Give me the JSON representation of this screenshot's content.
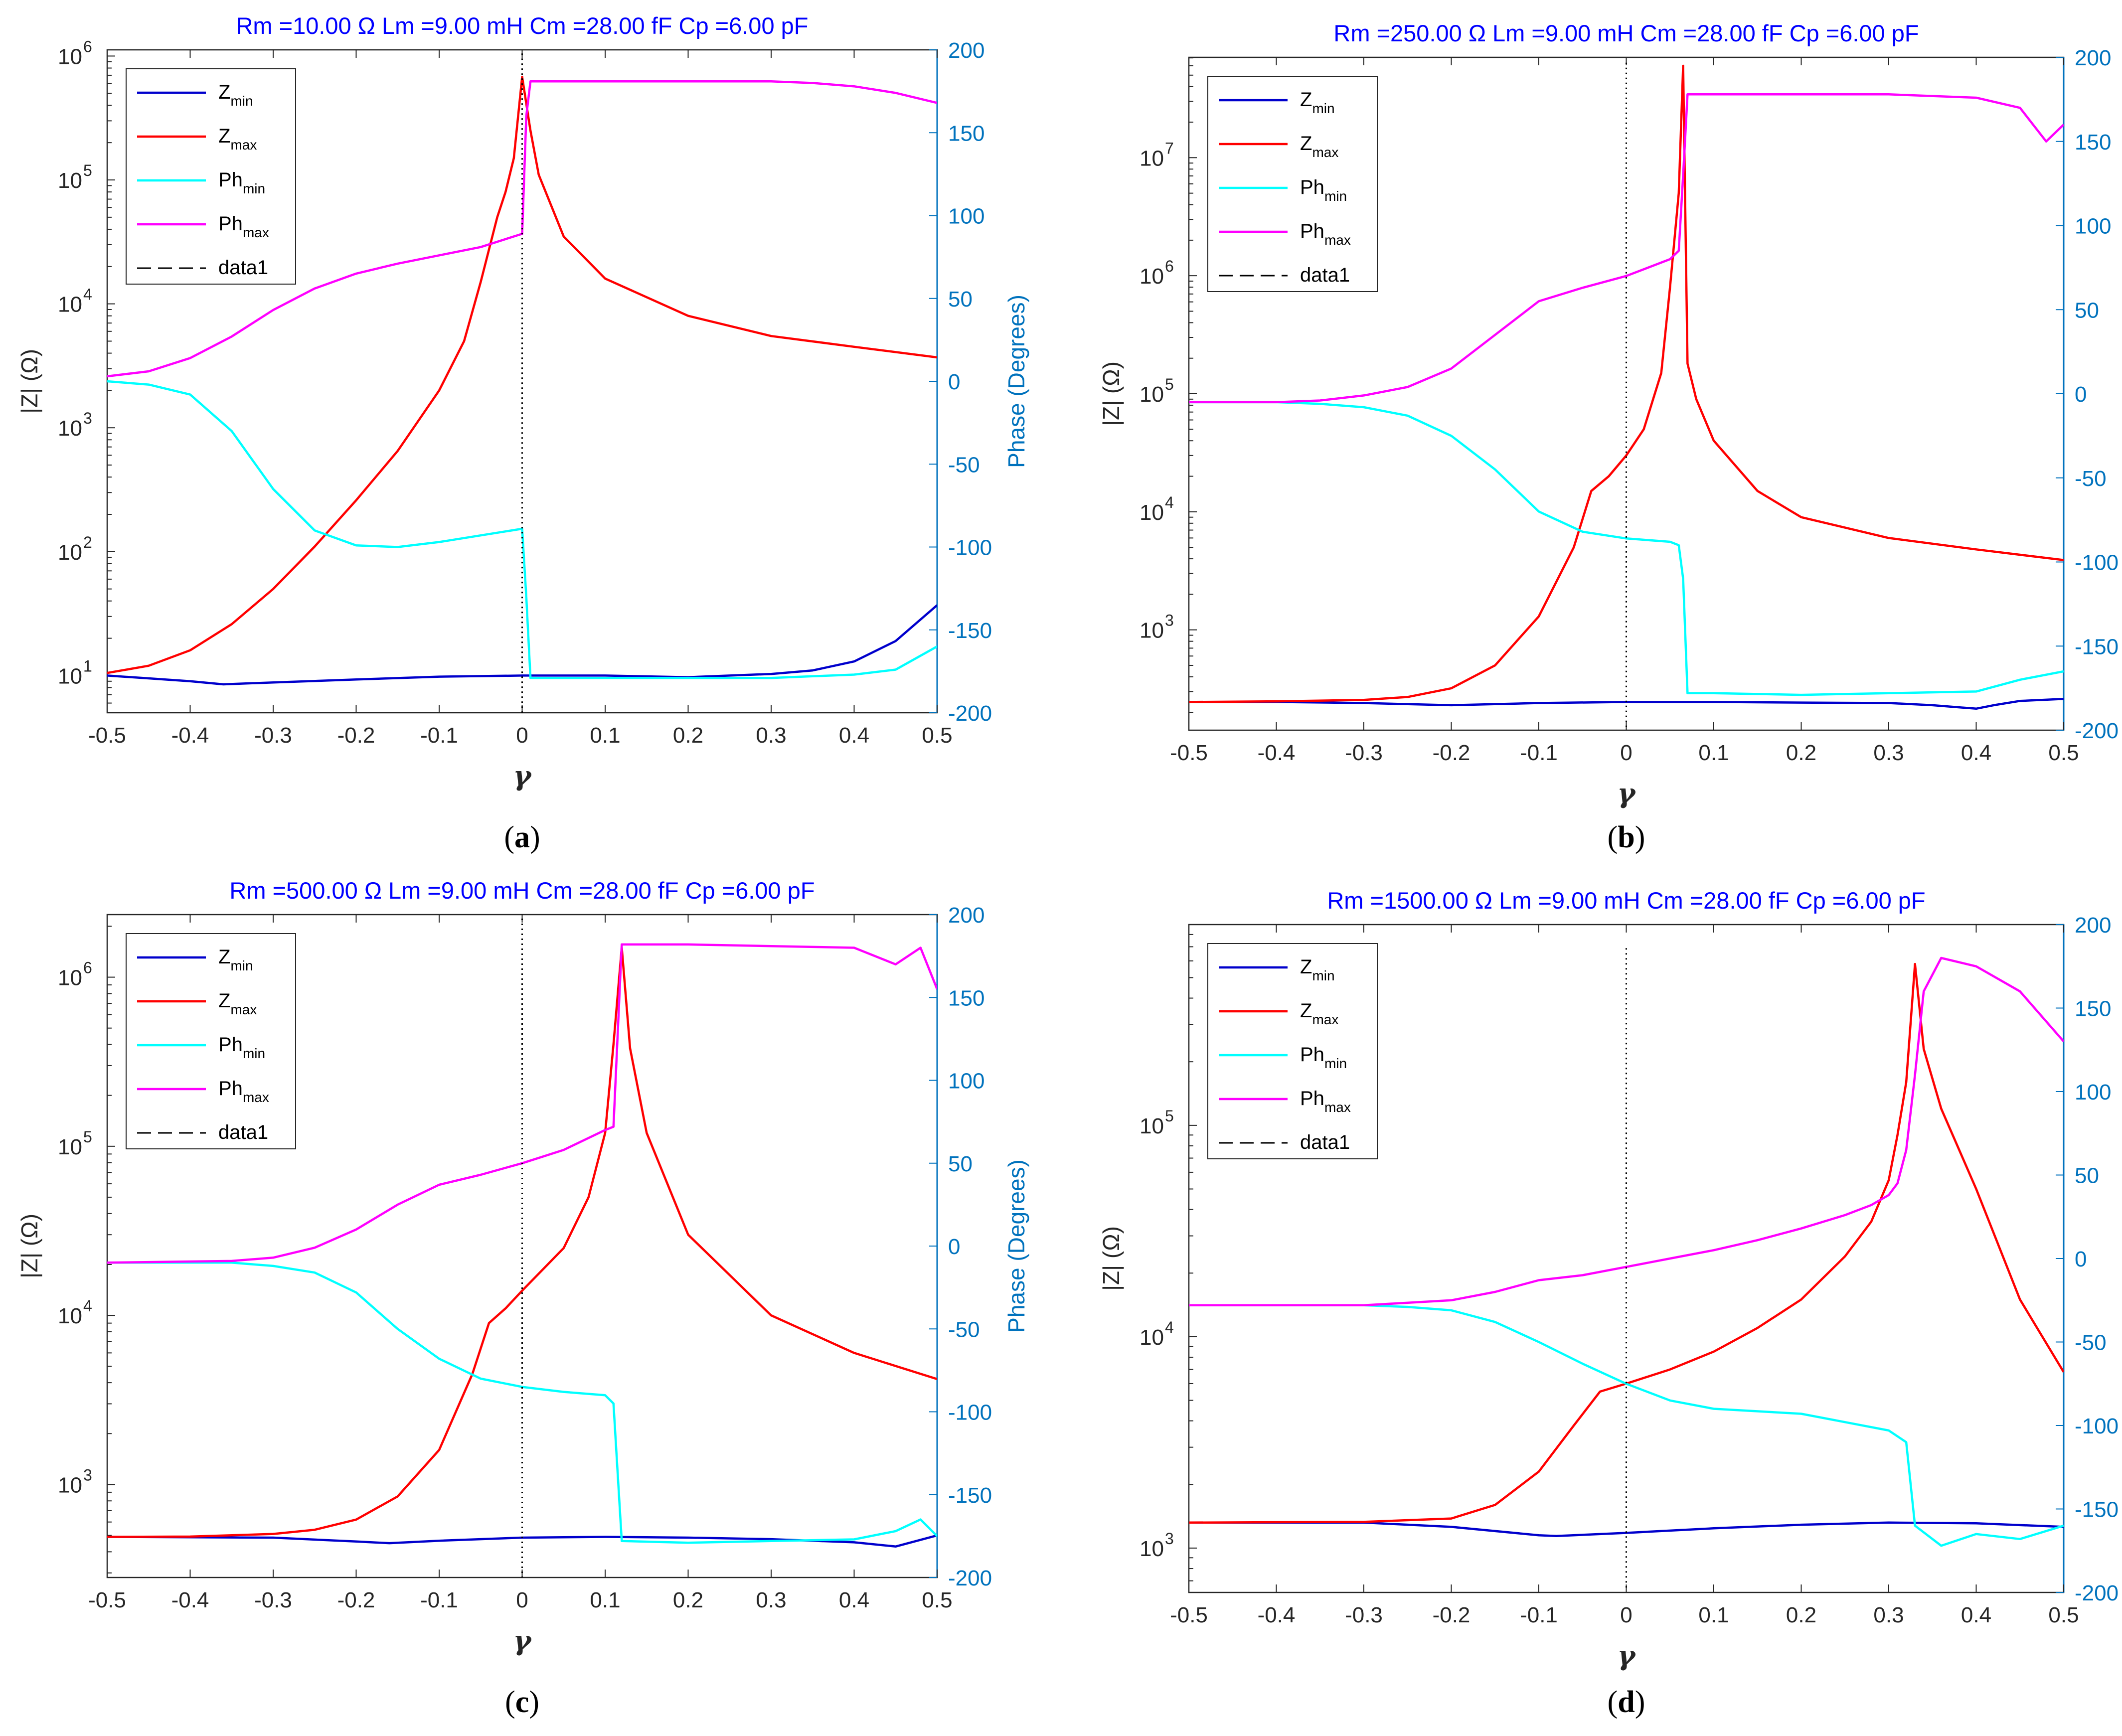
{
  "legend": {
    "z_min": {
      "base": "Z",
      "sub": "min"
    },
    "z_max": {
      "base": "Z",
      "sub": "max"
    },
    "ph_min": {
      "base": "Ph",
      "sub": "min"
    },
    "ph_max": {
      "base": "Ph",
      "sub": "max"
    },
    "data1": "data1"
  },
  "colors": {
    "z_min": "#0000cc",
    "z_max": "#ff0000",
    "ph_min": "#00ffff",
    "ph_max": "#ff00ff",
    "data1": "#000000",
    "title": "#0000ff",
    "right_axis": "#0072bd"
  },
  "axis_labels": {
    "left": "|Z| (Ω)",
    "right": "Phase (Degrees)",
    "x": "γ"
  },
  "chart_data": [
    {
      "type": "line",
      "panel": "a",
      "caption": "a",
      "title": "Rm =10.00 Ω    Lm =9.00 mH    Cm =28.00 fF    Cp =6.00 pF",
      "xlabel": "γ",
      "ylabel": "|Z| (Ω)",
      "y2label": "Phase (Degrees)",
      "xlim": [
        -0.5,
        0.5
      ],
      "ylim_log10": [
        0.7,
        6.05
      ],
      "y_scale": "log",
      "y_ticks": [
        {
          "exp": 1,
          "label": "10",
          "sup": "1"
        },
        {
          "exp": 2,
          "label": "10",
          "sup": "2"
        },
        {
          "exp": 3,
          "label": "10",
          "sup": "3"
        },
        {
          "exp": 4,
          "label": "10",
          "sup": "4"
        },
        {
          "exp": 5,
          "label": "10",
          "sup": "5"
        },
        {
          "exp": 6,
          "label": "10",
          "sup": "6"
        }
      ],
      "y2lim": [
        -200,
        200
      ],
      "y2_ticks": [
        -200,
        -150,
        -100,
        -50,
        0,
        50,
        100,
        150,
        200
      ],
      "x_ticks": [
        -0.5,
        -0.4,
        -0.3,
        -0.2,
        -0.1,
        0,
        0.1,
        0.2,
        0.3,
        0.4,
        0.5
      ],
      "legend_position": "top-left",
      "series": [
        {
          "name": "Z_min",
          "axis": "left",
          "x": [
            -0.5,
            -0.45,
            -0.4,
            -0.36,
            -0.3,
            -0.2,
            -0.1,
            0,
            0.1,
            0.2,
            0.25,
            0.3,
            0.35,
            0.4,
            0.45,
            0.5
          ],
          "values": [
            10,
            9.5,
            9,
            8.5,
            8.8,
            9.3,
            9.8,
            10,
            10,
            9.7,
            10,
            10.3,
            11,
            13,
            19,
            37
          ]
        },
        {
          "name": "Z_max",
          "axis": "left",
          "x": [
            -0.5,
            -0.45,
            -0.4,
            -0.35,
            -0.3,
            -0.25,
            -0.2,
            -0.15,
            -0.1,
            -0.07,
            -0.05,
            -0.03,
            -0.02,
            -0.01,
            0,
            0.01,
            0.02,
            0.05,
            0.1,
            0.2,
            0.3,
            0.4,
            0.5
          ],
          "values": [
            10.5,
            12,
            16,
            26,
            50,
            110,
            260,
            650,
            2000,
            5000,
            15000,
            50000,
            80000,
            150000,
            680000,
            250000,
            110000,
            35000,
            16000,
            8000,
            5500,
            4500,
            3700
          ]
        },
        {
          "name": "Ph_min",
          "axis": "right",
          "x": [
            -0.5,
            -0.45,
            -0.4,
            -0.35,
            -0.3,
            -0.25,
            -0.2,
            -0.15,
            -0.1,
            -0.05,
            0,
            0.005,
            0.01,
            0.1,
            0.2,
            0.3,
            0.35,
            0.4,
            0.45,
            0.5
          ],
          "values": [
            0,
            -2,
            -8,
            -30,
            -65,
            -90,
            -99,
            -100,
            -97,
            -93,
            -89,
            -130,
            -179,
            -179,
            -179,
            -179,
            -178,
            -177,
            -174,
            -160
          ]
        },
        {
          "name": "Ph_max",
          "axis": "right",
          "x": [
            -0.5,
            -0.45,
            -0.4,
            -0.35,
            -0.3,
            -0.25,
            -0.2,
            -0.15,
            -0.1,
            -0.05,
            0,
            0.005,
            0.01,
            0.1,
            0.2,
            0.3,
            0.35,
            0.4,
            0.45,
            0.5
          ],
          "values": [
            3,
            6,
            14,
            27,
            43,
            56,
            65,
            71,
            76,
            81,
            89,
            160,
            181,
            181,
            181,
            181,
            180,
            178,
            174,
            168
          ]
        },
        {
          "name": "data1",
          "axis": "left",
          "x": [
            0,
            0
          ],
          "values": [
            5,
            1120000
          ]
        }
      ]
    },
    {
      "type": "line",
      "panel": "b",
      "caption": "b",
      "title": "Rm =250.00 Ω    Lm =9.00 mH    Cm =28.00 fF    Cp =6.00 pF",
      "xlabel": "γ",
      "ylabel": "|Z| (Ω)",
      "y2label": "Phase (Degrees)",
      "xlim": [
        -0.5,
        0.5
      ],
      "ylim_log10": [
        2.15,
        7.85
      ],
      "y_scale": "log",
      "y_ticks": [
        {
          "exp": 3,
          "label": "10",
          "sup": "3"
        },
        {
          "exp": 4,
          "label": "10",
          "sup": "4"
        },
        {
          "exp": 5,
          "label": "10",
          "sup": "5"
        },
        {
          "exp": 6,
          "label": "10",
          "sup": "6"
        },
        {
          "exp": 7,
          "label": "10",
          "sup": "7"
        }
      ],
      "y2lim": [
        -200,
        200
      ],
      "y2_ticks": [
        -200,
        -150,
        -100,
        -50,
        0,
        50,
        100,
        150,
        200
      ],
      "x_ticks": [
        -0.5,
        -0.4,
        -0.3,
        -0.2,
        -0.1,
        0,
        0.1,
        0.2,
        0.3,
        0.4,
        0.5
      ],
      "legend_position": "top-left",
      "series": [
        {
          "name": "Z_min",
          "axis": "left",
          "x": [
            -0.5,
            -0.4,
            -0.3,
            -0.2,
            -0.1,
            0,
            0.1,
            0.2,
            0.3,
            0.35,
            0.4,
            0.42,
            0.45,
            0.5
          ],
          "values": [
            245,
            245,
            240,
            230,
            240,
            245,
            245,
            242,
            240,
            230,
            215,
            230,
            250,
            260
          ]
        },
        {
          "name": "Z_max",
          "axis": "left",
          "x": [
            -0.5,
            -0.4,
            -0.3,
            -0.25,
            -0.2,
            -0.15,
            -0.1,
            -0.06,
            -0.04,
            -0.02,
            0,
            0.02,
            0.04,
            0.05,
            0.06,
            0.065,
            0.07,
            0.08,
            0.1,
            0.15,
            0.2,
            0.3,
            0.4,
            0.5
          ],
          "values": [
            245,
            248,
            255,
            270,
            320,
            500,
            1300,
            5000,
            15000,
            20000,
            30000,
            50000,
            150000,
            800000,
            5000000,
            60000000,
            180000,
            90000,
            40000,
            15000,
            9000,
            6000,
            4800,
            3900
          ]
        },
        {
          "name": "Ph_min",
          "axis": "right",
          "x": [
            -0.5,
            -0.4,
            -0.35,
            -0.3,
            -0.25,
            -0.2,
            -0.15,
            -0.1,
            -0.05,
            0,
            0.05,
            0.06,
            0.065,
            0.07,
            0.1,
            0.2,
            0.3,
            0.4,
            0.45,
            0.5
          ],
          "values": [
            -5,
            -5,
            -6,
            -8,
            -13,
            -25,
            -45,
            -70,
            -82,
            -86,
            -88,
            -90,
            -110,
            -178,
            -178,
            -179,
            -178,
            -177,
            -170,
            -165
          ]
        },
        {
          "name": "Ph_max",
          "axis": "right",
          "x": [
            -0.5,
            -0.4,
            -0.35,
            -0.3,
            -0.25,
            -0.2,
            -0.15,
            -0.1,
            -0.05,
            0,
            0.05,
            0.06,
            0.065,
            0.07,
            0.1,
            0.2,
            0.3,
            0.4,
            0.45,
            0.48,
            0.5
          ],
          "values": [
            -5,
            -5,
            -4,
            -1,
            4,
            15,
            35,
            55,
            63,
            70,
            80,
            85,
            130,
            178,
            178,
            178,
            178,
            176,
            170,
            150,
            160
          ]
        },
        {
          "name": "data1",
          "axis": "left",
          "x": [
            0,
            0
          ],
          "values": [
            150,
            66000000
          ]
        }
      ]
    },
    {
      "type": "line",
      "panel": "c",
      "caption": "c",
      "title": "Rm =500.00 Ω    Lm =9.00 mH    Cm =28.00 fF    Cp =6.00 pF",
      "xlabel": "γ",
      "ylabel": "|Z| (Ω)",
      "y2label": "Phase (Degrees)",
      "xlim": [
        -0.5,
        0.5
      ],
      "ylim_log10": [
        2.45,
        6.37
      ],
      "y_scale": "log",
      "y_ticks": [
        {
          "exp": 3,
          "label": "10",
          "sup": "3"
        },
        {
          "exp": 4,
          "label": "10",
          "sup": "4"
        },
        {
          "exp": 5,
          "label": "10",
          "sup": "5"
        },
        {
          "exp": 6,
          "label": "10",
          "sup": "6"
        }
      ],
      "y2lim": [
        -200,
        200
      ],
      "y2_ticks": [
        -200,
        -150,
        -100,
        -50,
        0,
        50,
        100,
        150,
        200
      ],
      "x_ticks": [
        -0.5,
        -0.4,
        -0.3,
        -0.2,
        -0.1,
        0,
        0.1,
        0.2,
        0.3,
        0.4,
        0.5
      ],
      "legend_position": "top-left",
      "series": [
        {
          "name": "Z_min",
          "axis": "left",
          "x": [
            -0.5,
            -0.3,
            -0.2,
            -0.16,
            -0.1,
            0,
            0.1,
            0.2,
            0.3,
            0.4,
            0.45,
            0.5
          ],
          "values": [
            490,
            485,
            460,
            450,
            465,
            485,
            490,
            485,
            475,
            455,
            430,
            500
          ]
        },
        {
          "name": "Z_max",
          "axis": "left",
          "x": [
            -0.5,
            -0.4,
            -0.3,
            -0.25,
            -0.2,
            -0.15,
            -0.1,
            -0.06,
            -0.04,
            -0.02,
            0,
            0.05,
            0.08,
            0.1,
            0.11,
            0.12,
            0.13,
            0.15,
            0.2,
            0.3,
            0.4,
            0.5
          ],
          "values": [
            490,
            492,
            510,
            540,
            620,
            850,
            1600,
            4500,
            9000,
            11000,
            14000,
            25000,
            50000,
            120000,
            400000,
            1500000,
            380000,
            120000,
            30000,
            10000,
            6000,
            4200
          ]
        },
        {
          "name": "Ph_min",
          "axis": "right",
          "x": [
            -0.5,
            -0.35,
            -0.3,
            -0.25,
            -0.2,
            -0.15,
            -0.1,
            -0.05,
            0,
            0.05,
            0.1,
            0.11,
            0.12,
            0.2,
            0.3,
            0.4,
            0.45,
            0.48,
            0.5
          ],
          "values": [
            -10,
            -10,
            -12,
            -16,
            -28,
            -50,
            -68,
            -80,
            -85,
            -88,
            -90,
            -95,
            -178,
            -179,
            -178,
            -177,
            -172,
            -165,
            -175
          ]
        },
        {
          "name": "Ph_max",
          "axis": "right",
          "x": [
            -0.5,
            -0.35,
            -0.3,
            -0.25,
            -0.2,
            -0.15,
            -0.1,
            -0.05,
            0,
            0.05,
            0.1,
            0.11,
            0.12,
            0.2,
            0.3,
            0.4,
            0.45,
            0.48,
            0.5
          ],
          "values": [
            -10,
            -9,
            -7,
            -1,
            10,
            25,
            37,
            43,
            50,
            58,
            70,
            72,
            182,
            182,
            181,
            180,
            170,
            180,
            155
          ]
        },
        {
          "name": "data1",
          "axis": "left",
          "x": [
            0,
            0
          ],
          "values": [
            280,
            2350000
          ]
        }
      ]
    },
    {
      "type": "line",
      "panel": "d",
      "caption": "d",
      "title": "Rm =1500.00 Ω    Lm =9.00 mH    Cm =28.00 fF    Cp =6.00 pF",
      "xlabel": "γ",
      "ylabel": "|Z| (Ω)",
      "y2label": "Phase (Degrees)",
      "xlim": [
        -0.5,
        0.5
      ],
      "ylim_log10": [
        2.79,
        5.95
      ],
      "y_scale": "log",
      "y_ticks": [
        {
          "exp": 3,
          "label": "10",
          "sup": "3"
        },
        {
          "exp": 4,
          "label": "10",
          "sup": "4"
        },
        {
          "exp": 5,
          "label": "10",
          "sup": "5"
        }
      ],
      "y2lim": [
        -200,
        200
      ],
      "y2_ticks": [
        -200,
        -150,
        -100,
        -50,
        0,
        50,
        100,
        150,
        200
      ],
      "x_ticks": [
        -0.5,
        -0.4,
        -0.3,
        -0.2,
        -0.1,
        0,
        0.1,
        0.2,
        0.3,
        0.4,
        0.5
      ],
      "legend_position": "top-left",
      "series": [
        {
          "name": "Z_min",
          "axis": "left",
          "x": [
            -0.5,
            -0.3,
            -0.2,
            -0.1,
            -0.08,
            0,
            0.1,
            0.2,
            0.3,
            0.4,
            0.5
          ],
          "values": [
            1320,
            1320,
            1260,
            1150,
            1140,
            1180,
            1240,
            1290,
            1320,
            1310,
            1260
          ]
        },
        {
          "name": "Z_max",
          "axis": "left",
          "x": [
            -0.5,
            -0.3,
            -0.2,
            -0.15,
            -0.1,
            -0.06,
            -0.03,
            0,
            0.05,
            0.1,
            0.15,
            0.2,
            0.25,
            0.28,
            0.3,
            0.31,
            0.32,
            0.33,
            0.34,
            0.36,
            0.4,
            0.45,
            0.5
          ],
          "values": [
            1320,
            1330,
            1380,
            1600,
            2300,
            3800,
            5500,
            6000,
            7000,
            8500,
            11000,
            15000,
            24000,
            35000,
            55000,
            90000,
            160000,
            580000,
            230000,
            120000,
            50000,
            15000,
            6800
          ]
        },
        {
          "name": "Ph_min",
          "axis": "right",
          "x": [
            -0.5,
            -0.3,
            -0.25,
            -0.2,
            -0.15,
            -0.1,
            -0.05,
            0,
            0.05,
            0.1,
            0.2,
            0.3,
            0.32,
            0.33,
            0.36,
            0.4,
            0.45,
            0.5
          ],
          "values": [
            -28,
            -28,
            -29,
            -31,
            -38,
            -50,
            -63,
            -75,
            -85,
            -90,
            -93,
            -103,
            -110,
            -160,
            -172,
            -165,
            -168,
            -160
          ]
        },
        {
          "name": "Ph_max",
          "axis": "right",
          "x": [
            -0.5,
            -0.3,
            -0.2,
            -0.15,
            -0.1,
            -0.05,
            0,
            0.05,
            0.1,
            0.15,
            0.2,
            0.25,
            0.28,
            0.3,
            0.31,
            0.32,
            0.33,
            0.34,
            0.36,
            0.4,
            0.45,
            0.5
          ],
          "values": [
            -28,
            -28,
            -25,
            -20,
            -13,
            -10,
            -5,
            0,
            5,
            11,
            18,
            26,
            32,
            38,
            45,
            65,
            110,
            160,
            180,
            175,
            160,
            130
          ]
        },
        {
          "name": "data1",
          "axis": "left",
          "x": [
            0,
            0
          ],
          "values": [
            650,
            700000
          ]
        }
      ]
    }
  ]
}
